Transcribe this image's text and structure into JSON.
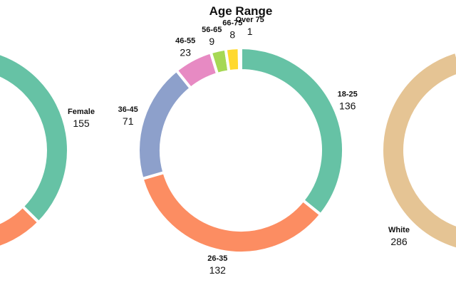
{
  "chart_data": [
    {
      "type": "pie",
      "title": "",
      "partial": "cropped on left edge",
      "slices": [
        {
          "label": "Female",
          "value": 155,
          "color": "#66c2a5"
        }
      ],
      "other_visible_colors": [
        "#fc8d62"
      ]
    },
    {
      "type": "pie",
      "title": "Age Range",
      "slices": [
        {
          "label": "18-25",
          "value": 136,
          "color": "#66c2a5"
        },
        {
          "label": "26-35",
          "value": 132,
          "color": "#fc8d62"
        },
        {
          "label": "36-45",
          "value": 71,
          "color": "#8da0cb"
        },
        {
          "label": "46-55",
          "value": 23,
          "color": "#e78ac3"
        },
        {
          "label": "56-65",
          "value": 9,
          "color": "#a6d854"
        },
        {
          "label": "66-75",
          "value": 8,
          "color": "#ffd92f"
        },
        {
          "label": "Over 75",
          "value": 1,
          "color": "#e5c494"
        }
      ]
    },
    {
      "type": "pie",
      "title": "",
      "partial": "cropped on right edge",
      "slices": [
        {
          "label": "White",
          "value": 286,
          "color": "#e5c494"
        }
      ]
    }
  ]
}
